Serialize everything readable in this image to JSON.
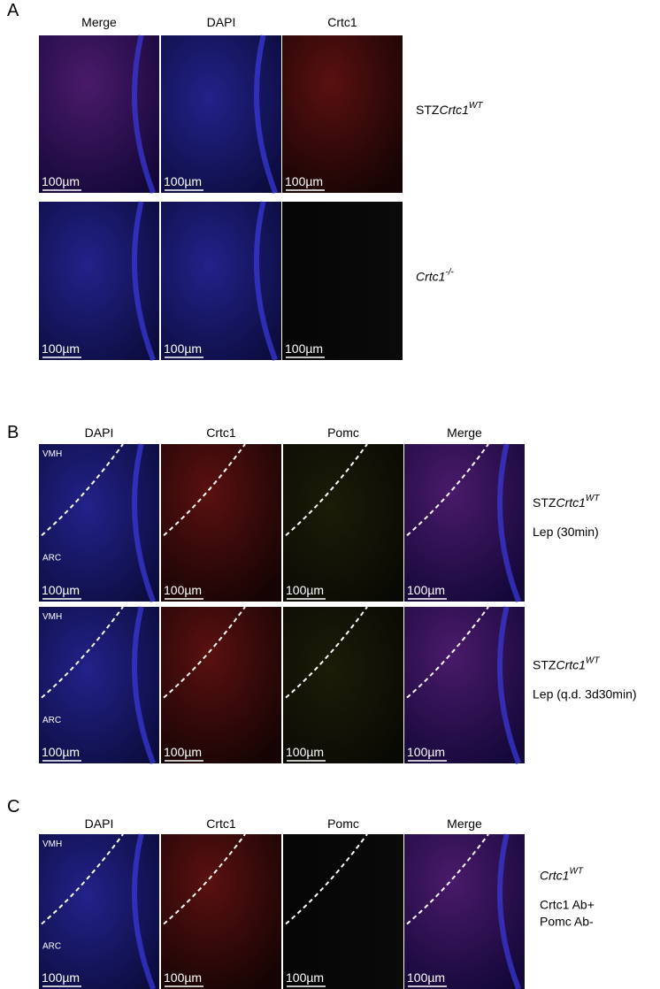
{
  "panels": [
    {
      "label": "A",
      "columns": [
        "Merge",
        "DAPI",
        "Crtc1"
      ],
      "scale_bar": "100µm",
      "rows": [
        {
          "label": {
            "prefix": "STZ",
            "gene": "Crtc1",
            "sup": "WT"
          }
        },
        {
          "label": {
            "gene": "Crtc1",
            "sup": "-/-"
          }
        }
      ]
    },
    {
      "label": "B",
      "columns": [
        "DAPI",
        "Crtc1",
        "Pomc",
        "Merge"
      ],
      "scale_bar": "100µm",
      "regions": [
        "VMH",
        "ARC"
      ],
      "rows": [
        {
          "label": {
            "prefix": "STZ",
            "gene": "Crtc1",
            "sup": "WT"
          },
          "note": "Lep (30min)"
        },
        {
          "label": {
            "prefix": "STZ",
            "gene": "Crtc1",
            "sup": "WT"
          },
          "note": "Lep (q.d. 3d30min)"
        }
      ]
    },
    {
      "label": "C",
      "columns": [
        "DAPI",
        "Crtc1",
        "Pomc",
        "Merge"
      ],
      "scale_bar": "100µm",
      "regions": [
        "VMH",
        "ARC"
      ],
      "rows": [
        {
          "label": {
            "gene": "Crtc1",
            "sup": "WT"
          },
          "note": "Crtc1 Ab+",
          "note2": "Pomc Ab-"
        }
      ]
    }
  ]
}
